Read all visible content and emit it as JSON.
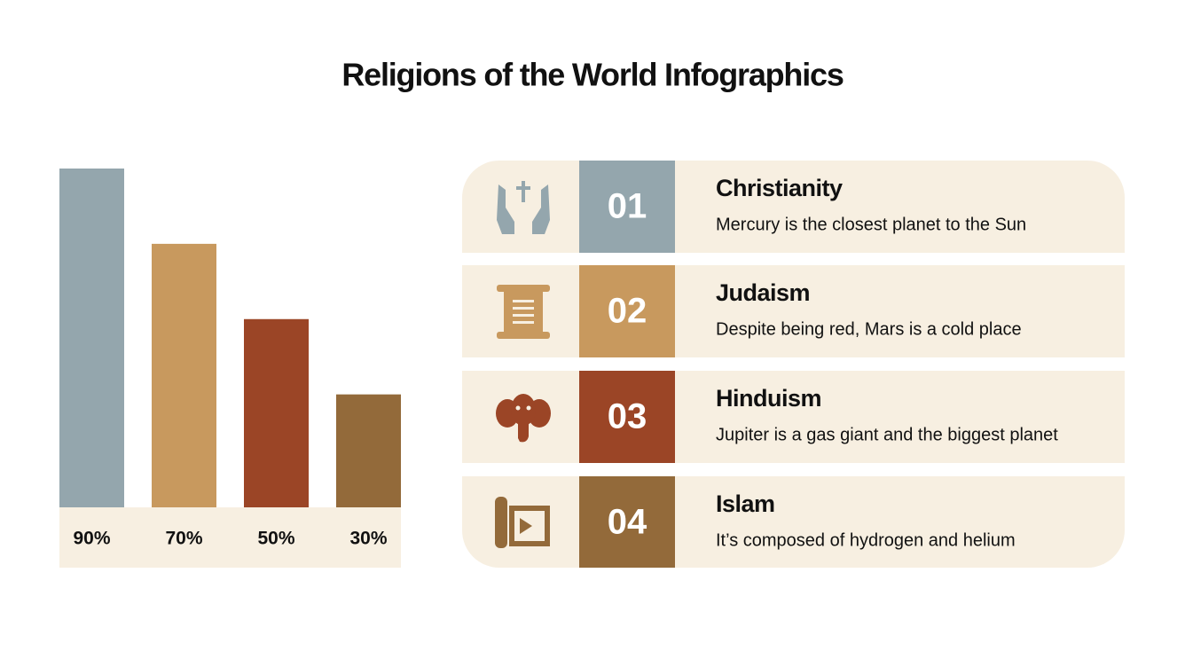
{
  "title": "Religions of the World Infographics",
  "chart_data": {
    "type": "bar",
    "values": [
      90,
      70,
      50,
      30
    ],
    "value_labels": [
      "90%",
      "70%",
      "50%",
      "30%"
    ],
    "colors": [
      "#94a6ad",
      "#c8995e",
      "#9b4526",
      "#936a3a"
    ]
  },
  "items": [
    {
      "number": "01",
      "name": "Christianity",
      "text": "Mercury is the closest planet to the Sun"
    },
    {
      "number": "02",
      "name": "Judaism",
      "text": "Despite being red, Mars is a cold place"
    },
    {
      "number": "03",
      "name": "Hinduism",
      "text": "Jupiter is a gas giant and the biggest planet"
    },
    {
      "number": "04",
      "name": "Islam",
      "text": "It’s composed of hydrogen and helium"
    }
  ]
}
